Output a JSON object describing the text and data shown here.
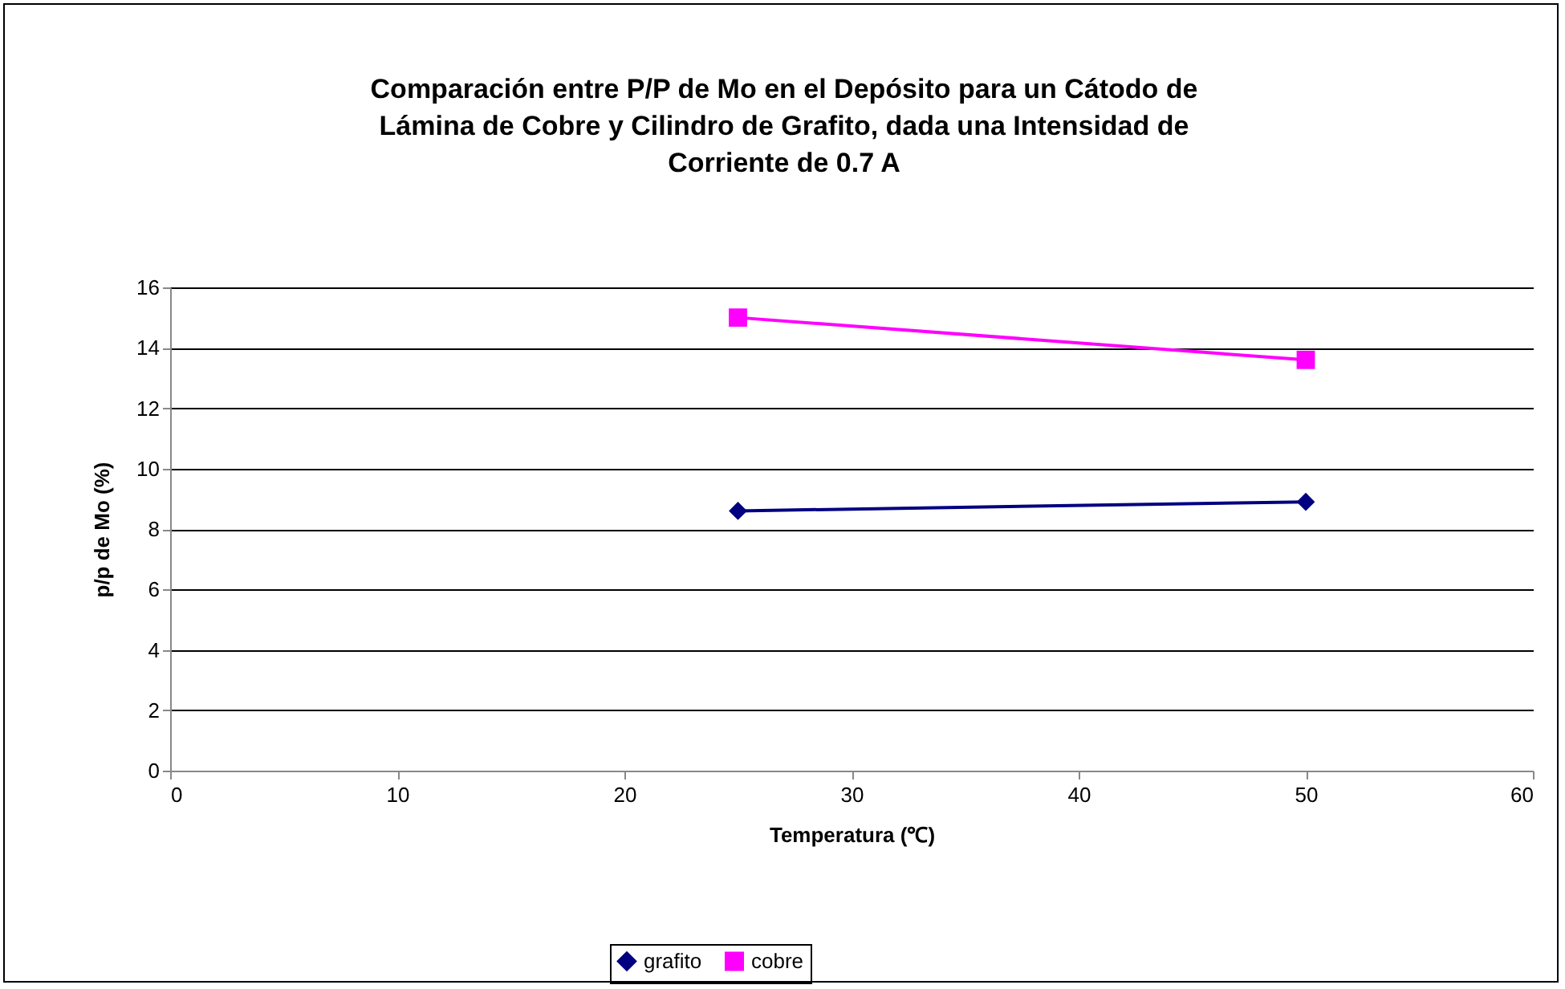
{
  "chart_data": {
    "type": "line",
    "title": "Comparación entre P/P de Mo en el Depósito para un Cátodo de Lámina de Cobre y Cilindro de Grafito, dada una Intensidad de Corriente de 0.7 A",
    "xlabel": "Temperatura (℃)",
    "ylabel": "p/p de Mo (%)",
    "x": [
      25,
      50
    ],
    "series": [
      {
        "name": "grafito",
        "color": "#000080",
        "marker": "diamond",
        "values": [
          8.6,
          8.9
        ]
      },
      {
        "name": "cobre",
        "color": "#ff00ff",
        "marker": "square",
        "values": [
          15.0,
          13.6
        ]
      }
    ],
    "xlim": [
      0,
      60
    ],
    "xticks": [
      0,
      10,
      20,
      30,
      40,
      50,
      60
    ],
    "ylim": [
      0,
      16
    ],
    "yticks": [
      0,
      2,
      4,
      6,
      8,
      10,
      12,
      14,
      16
    ],
    "grid": "y",
    "legend": "bottom"
  }
}
